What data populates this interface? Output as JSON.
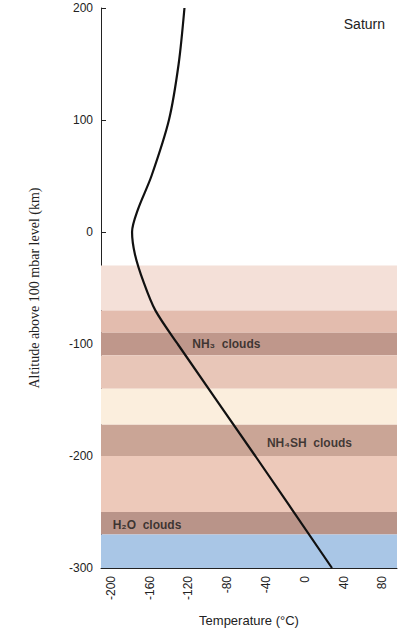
{
  "chart_data": {
    "type": "line",
    "title": "Saturn",
    "x_label": "Temperature (°C)",
    "y_label": "Altitude above 100 mbar level (km)",
    "xlim": [
      -210,
      95
    ],
    "xticks": [
      -200,
      -160,
      -120,
      -80,
      -40,
      0,
      40,
      80
    ],
    "ylim": [
      -300,
      200
    ],
    "yticks": [
      -300,
      -200,
      -100,
      0,
      100,
      200
    ],
    "grid": false,
    "series": [
      {
        "name": "Temperature",
        "color": "#111111",
        "x": [
          -124,
          -130,
          -140,
          -158,
          -172,
          -178,
          -175,
          -166,
          -154,
          -131,
          -51,
          28
        ],
        "values": [
          200,
          150,
          100,
          50,
          20,
          0,
          -20,
          -45,
          -70,
          -100,
          -200,
          -300
        ]
      }
    ],
    "annotations": [
      {
        "text": "NH₃  clouds",
        "x": -116,
        "y": -100
      },
      {
        "text": "NH₄SH  clouds",
        "x": -39,
        "y": -188
      },
      {
        "text": "H₂O  clouds",
        "x": -198,
        "y": -262
      }
    ],
    "bands": [
      {
        "from": -30,
        "to": -70,
        "color": "#f4e0d8"
      },
      {
        "from": -70,
        "to": -90,
        "color": "#e3bcae"
      },
      {
        "from": -90,
        "to": -110,
        "color": "#bf978b"
      },
      {
        "from": -110,
        "to": -140,
        "color": "#e8c6b8"
      },
      {
        "from": -140,
        "to": -172,
        "color": "#fbeedd"
      },
      {
        "from": -172,
        "to": -200,
        "color": "#caa596"
      },
      {
        "from": -200,
        "to": -250,
        "color": "#edc9ba"
      },
      {
        "from": -250,
        "to": -270,
        "color": "#b99489"
      },
      {
        "from": -270,
        "to": -300,
        "color": "#a9c6e6"
      }
    ]
  }
}
